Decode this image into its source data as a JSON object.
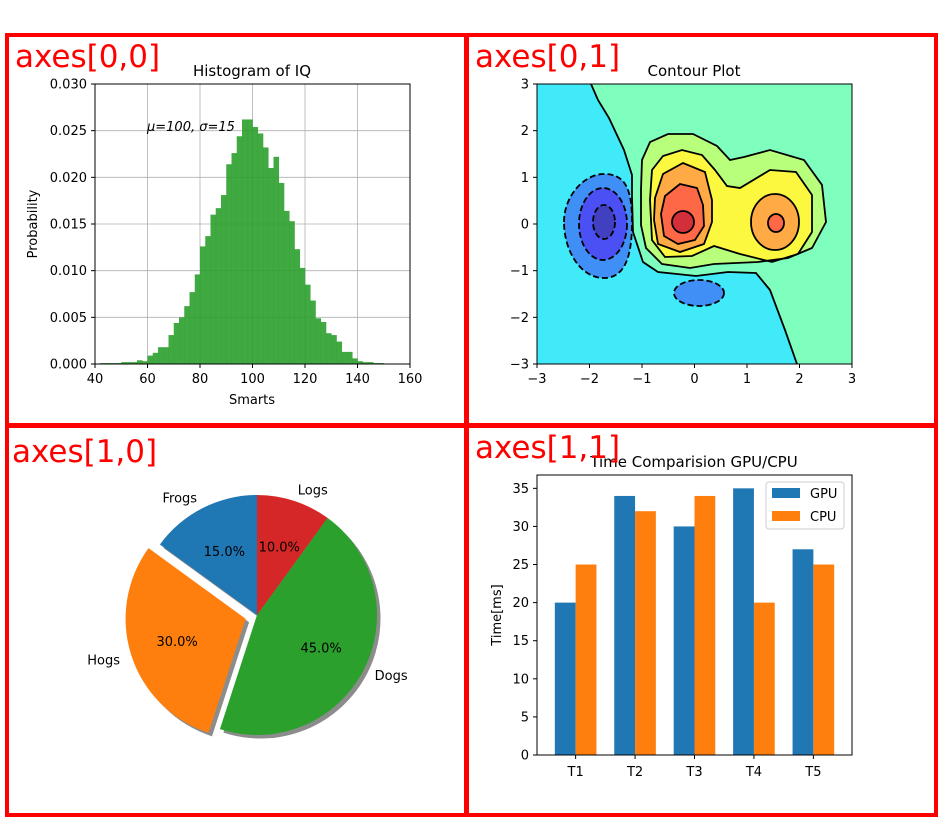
{
  "panel_labels": [
    "axes[0,0]",
    "axes[0,1]",
    "axes[1,0]",
    "axes[1,1]"
  ],
  "colors": {
    "panel_border": "#ff0000",
    "panel_label": "#ff0000",
    "hist": "#2ca02c",
    "gpu": "#1f77b4",
    "cpu": "#ff7f0e",
    "pie": [
      "#1f77b4",
      "#ff7f0e",
      "#2ca02c",
      "#d62728"
    ],
    "contour_fill": [
      "#40eaf8",
      "#7effbe",
      "#b8ff7c",
      "#fbf83f",
      "#ffaa44",
      "#ff6847",
      "#d32f3a",
      "#3f8ff6",
      "#4b50f5",
      "#4040c0"
    ]
  },
  "chart_data": [
    {
      "type": "bar",
      "subtype": "histogram",
      "title": "Histogram of IQ",
      "xlabel": "Smarts",
      "ylabel": "Probability",
      "annotation": "μ=100,  σ=15",
      "xlim": [
        40,
        160
      ],
      "ylim": [
        0,
        0.03
      ],
      "xticks": [
        "40",
        "60",
        "80",
        "100",
        "120",
        "140",
        "160"
      ],
      "yticks": [
        "0.000",
        "0.005",
        "0.010",
        "0.015",
        "0.020",
        "0.025",
        "0.030"
      ],
      "grid": true,
      "bin_width": 2,
      "bin_starts": [
        42,
        44,
        46,
        48,
        50,
        52,
        54,
        56,
        58,
        60,
        62,
        64,
        66,
        68,
        70,
        72,
        74,
        76,
        78,
        80,
        82,
        84,
        86,
        88,
        90,
        92,
        94,
        96,
        98,
        100,
        102,
        104,
        106,
        108,
        110,
        112,
        114,
        116,
        118,
        120,
        122,
        124,
        126,
        128,
        130,
        132,
        134,
        136,
        138,
        140,
        142,
        144,
        146,
        148
      ],
      "values": [
        0.0001,
        0.0001,
        0.0001,
        0.0001,
        0.0002,
        0.0002,
        0.0002,
        0.0004,
        0.0003,
        0.0009,
        0.0012,
        0.0018,
        0.0018,
        0.0031,
        0.0044,
        0.005,
        0.0062,
        0.0077,
        0.0096,
        0.0126,
        0.0137,
        0.016,
        0.0167,
        0.0181,
        0.0214,
        0.0226,
        0.0244,
        0.0262,
        0.0262,
        0.0254,
        0.0247,
        0.0232,
        0.021,
        0.0222,
        0.0194,
        0.0164,
        0.0153,
        0.0123,
        0.0103,
        0.0085,
        0.0068,
        0.0049,
        0.0045,
        0.0033,
        0.0031,
        0.0024,
        0.0013,
        0.0013,
        0.0006,
        0.0003,
        0.0002,
        0.0002,
        0.0001,
        0.0001
      ]
    },
    {
      "type": "heatmap",
      "subtype": "filled contour",
      "title": "Contour Plot",
      "xlim": [
        -3,
        3
      ],
      "ylim": [
        -3,
        3
      ],
      "xticks": [
        "−3",
        "−2",
        "−1",
        "0",
        "1",
        "2",
        "3"
      ],
      "yticks": [
        "−3",
        "−2",
        "−1",
        "0",
        "1",
        "2",
        "3"
      ]
    },
    {
      "type": "pie",
      "labels": [
        "Frogs",
        "Hogs",
        "Dogs",
        "Logs"
      ],
      "values": [
        15,
        30,
        45,
        10
      ],
      "pct_labels": [
        "15.0%",
        "30.0%",
        "45.0%",
        "10.0%"
      ],
      "explode": [
        0,
        0.1,
        0,
        0
      ],
      "start_angle": 90,
      "shadow": true
    },
    {
      "type": "bar",
      "title": "Time Comparision GPU/CPU",
      "ylabel": "Time[ms]",
      "xlabel": "",
      "categories": [
        "T1",
        "T2",
        "T3",
        "T4",
        "T5"
      ],
      "series": [
        {
          "name": "GPU",
          "values": [
            20,
            34,
            30,
            35,
            27
          ]
        },
        {
          "name": "CPU",
          "values": [
            25,
            32,
            34,
            20,
            25
          ]
        }
      ],
      "ylim": [
        0,
        36.75
      ],
      "yticks": [
        "0",
        "5",
        "10",
        "15",
        "20",
        "25",
        "30",
        "35"
      ],
      "legend": "top-right"
    }
  ]
}
